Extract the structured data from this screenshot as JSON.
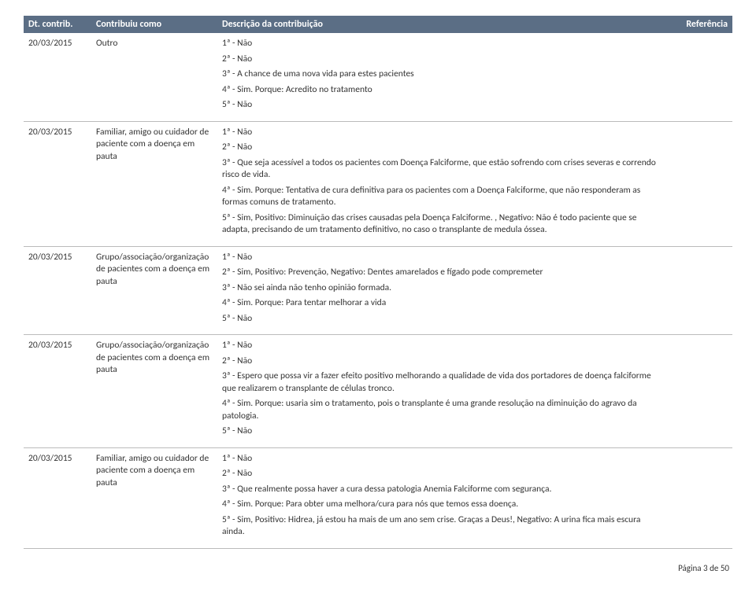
{
  "header": {
    "date": "Dt. contrib.",
    "contrib": "Contribuiu como",
    "desc": "Descrição da contribuição",
    "ref": "Referência"
  },
  "entries": [
    {
      "date": "20/03/2015",
      "contrib": "Outro",
      "answers": [
        "1ª - Não",
        "2ª - Não",
        "3ª - A chance de uma nova vida para estes pacientes",
        "4ª - Sim. Porque: Acredito no tratamento",
        "5ª - Não"
      ]
    },
    {
      "date": "20/03/2015",
      "contrib": "Familiar, amigo ou cuidador de paciente com a doença em pauta",
      "answers": [
        "1ª - Não",
        "2ª - Não",
        "3ª - Que seja acessível a todos os pacientes com Doença Falciforme, que estão sofrendo com crises severas e correndo risco de vida.",
        "4ª - Sim. Porque: Tentativa de cura definitiva para os pacientes com a Doença Falciforme,  que não responderam as formas comuns de tratamento.",
        "5ª - Sim, Positivo: Diminuição das crises causadas pela Doença Falciforme. , Negativo: Não é todo paciente que se adapta, precisando de um tratamento definitivo, no caso o transplante de medula óssea."
      ]
    },
    {
      "date": "20/03/2015",
      "contrib": "Grupo/associação/organização de pacientes com a doença em pauta",
      "answers": [
        "1ª - Não",
        "2ª - Sim, Positivo: Prevenção, Negativo: Dentes amarelados e fígado pode compremeter",
        "3ª - Não sei ainda não tenho opinião formada.",
        "4ª - Sim. Porque: Para tentar melhorar a vida",
        "5ª - Não"
      ]
    },
    {
      "date": "20/03/2015",
      "contrib": "Grupo/associação/organização de pacientes com a doença em pauta",
      "answers": [
        "1ª - Não",
        "2ª - Não",
        "3ª - Espero que possa vir a fazer efeito positivo melhorando a qualidade de vida dos portadores de doença falciforme que realizarem o transplante de células tronco.",
        "4ª - Sim. Porque: usaria sim  o tratamento, pois o transplante é uma grande resolução na diminuição do agravo da patologia.",
        "5ª - Não"
      ]
    },
    {
      "date": "20/03/2015",
      "contrib": "Familiar, amigo ou cuidador de paciente com a doença em pauta",
      "answers": [
        "1ª - Não",
        "2ª - Não",
        "3ª - Que realmente possa haver a cura dessa patologia Anemia Falciforme com segurança.",
        "4ª - Sim. Porque: Para obter uma melhora/cura para nós que temos essa doença.",
        "5ª - Sim, Positivo: Hidrea, já estou ha mais de um ano sem crise. Graças a Deus!, Negativo: A urina fica mais escura ainda."
      ]
    }
  ],
  "footer": "Página 3 de 50"
}
